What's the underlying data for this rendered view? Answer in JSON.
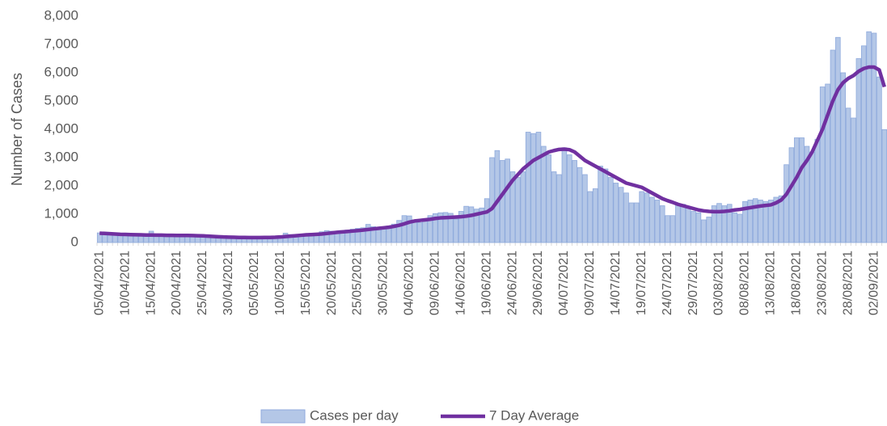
{
  "chart_data": {
    "type": "combo",
    "y_label": "Number of Cases",
    "ylim": [
      0,
      8000
    ],
    "yticks": [
      0,
      {
        "value": 1000,
        "label": "1,000"
      },
      {
        "value": 2000,
        "label": "2,000"
      },
      {
        "value": 3000,
        "label": "3,000"
      },
      {
        "value": 4000,
        "label": "4,000"
      },
      {
        "value": 5000,
        "label": "5,000"
      },
      {
        "value": 6000,
        "label": "6,000"
      },
      {
        "value": 7000,
        "label": "7,000"
      },
      {
        "value": 8000,
        "label": "8,000"
      }
    ],
    "legend": "bottom",
    "categories": [
      "05/04/2021",
      null,
      null,
      null,
      null,
      "10/04/2021",
      null,
      null,
      null,
      null,
      "15/04/2021",
      null,
      null,
      null,
      null,
      "20/04/2021",
      null,
      null,
      null,
      null,
      "25/04/2021",
      null,
      null,
      null,
      null,
      "30/04/2021",
      null,
      null,
      null,
      null,
      "05/05/2021",
      null,
      null,
      null,
      null,
      "10/05/2021",
      null,
      null,
      null,
      null,
      "15/05/2021",
      null,
      null,
      null,
      null,
      "20/05/2021",
      null,
      null,
      null,
      null,
      "25/05/2021",
      null,
      null,
      null,
      null,
      "30/05/2021",
      null,
      null,
      null,
      null,
      "04/06/2021",
      null,
      null,
      null,
      null,
      "09/06/2021",
      null,
      null,
      null,
      null,
      "14/06/2021",
      null,
      null,
      null,
      null,
      "19/06/2021",
      null,
      null,
      null,
      null,
      "24/06/2021",
      null,
      null,
      null,
      null,
      "29/06/2021",
      null,
      null,
      null,
      null,
      "04/07/2021",
      null,
      null,
      null,
      null,
      "09/07/2021",
      null,
      null,
      null,
      null,
      "14/07/2021",
      null,
      null,
      null,
      null,
      "19/07/2021",
      null,
      null,
      null,
      null,
      "24/07/2021",
      null,
      null,
      null,
      null,
      "29/07/2021",
      null,
      null,
      null,
      null,
      "03/08/2021",
      null,
      null,
      null,
      null,
      "08/08/2021",
      null,
      null,
      null,
      null,
      "13/08/2021",
      null,
      null,
      null,
      null,
      "18/08/2021",
      null,
      null,
      null,
      null,
      "23/08/2021",
      null,
      null,
      null,
      null,
      "28/08/2021",
      null,
      null,
      null,
      null,
      "02/09/2021",
      null,
      null
    ],
    "series": [
      {
        "name": "Cases per day",
        "type": "bar",
        "color": "#b4c7e7",
        "values": [
          340,
          330,
          310,
          300,
          290,
          280,
          270,
          260,
          250,
          240,
          400,
          280,
          260,
          250,
          250,
          240,
          250,
          260,
          240,
          230,
          210,
          200,
          200,
          190,
          180,
          180,
          170,
          170,
          170,
          160,
          160,
          170,
          180,
          200,
          210,
          240,
          330,
          280,
          270,
          280,
          300,
          290,
          310,
          380,
          420,
          400,
          380,
          420,
          440,
          470,
          500,
          520,
          640,
          560,
          520,
          560,
          580,
          650,
          780,
          950,
          940,
          800,
          700,
          750,
          950,
          1020,
          1050,
          1060,
          1030,
          830,
          1100,
          1280,
          1260,
          1180,
          1220,
          1550,
          3000,
          3250,
          2900,
          2950,
          2500,
          2300,
          2500,
          3900,
          3850,
          3900,
          3400,
          3100,
          2500,
          2400,
          3350,
          3100,
          2900,
          2650,
          2400,
          1800,
          1900,
          2700,
          2600,
          2300,
          2100,
          1950,
          1750,
          1400,
          1400,
          1800,
          1750,
          1600,
          1500,
          1300,
          950,
          950,
          1350,
          1350,
          1250,
          1100,
          1050,
          800,
          900,
          1300,
          1380,
          1300,
          1350,
          1050,
          1000,
          1450,
          1500,
          1550,
          1500,
          1450,
          1500,
          1600,
          1650,
          2750,
          3350,
          3700,
          3700,
          3400,
          3200,
          3650,
          5500,
          5600,
          6800,
          7250,
          6000,
          4750,
          4400,
          6500,
          6950,
          7450,
          7400,
          5850,
          3990
        ]
      },
      {
        "name": "7 Day Average",
        "type": "line",
        "color": "#7030a0",
        "values": [
          330,
          320,
          310,
          300,
          290,
          285,
          280,
          275,
          270,
          265,
          265,
          260,
          260,
          255,
          255,
          250,
          250,
          250,
          245,
          240,
          235,
          225,
          215,
          205,
          195,
          190,
          185,
          180,
          178,
          175,
          175,
          175,
          178,
          180,
          185,
          195,
          210,
          225,
          240,
          255,
          270,
          280,
          290,
          300,
          320,
          340,
          360,
          375,
          390,
          405,
          420,
          440,
          460,
          480,
          500,
          520,
          540,
          570,
          610,
          660,
          720,
          760,
          780,
          800,
          820,
          850,
          870,
          880,
          890,
          900,
          910,
          930,
          960,
          1000,
          1040,
          1080,
          1200,
          1450,
          1700,
          1950,
          2200,
          2400,
          2600,
          2750,
          2900,
          3000,
          3100,
          3200,
          3250,
          3290,
          3300,
          3280,
          3200,
          3050,
          2900,
          2800,
          2700,
          2600,
          2500,
          2400,
          2300,
          2200,
          2100,
          2050,
          2000,
          1950,
          1850,
          1750,
          1650,
          1550,
          1480,
          1420,
          1350,
          1300,
          1250,
          1200,
          1150,
          1120,
          1100,
          1090,
          1090,
          1100,
          1120,
          1150,
          1170,
          1200,
          1230,
          1260,
          1290,
          1310,
          1330,
          1400,
          1500,
          1700,
          2000,
          2300,
          2650,
          2900,
          3200,
          3600,
          4000,
          4500,
          5000,
          5400,
          5650,
          5800,
          5900,
          6050,
          6150,
          6200,
          6200,
          6100,
          5500
        ]
      }
    ]
  }
}
